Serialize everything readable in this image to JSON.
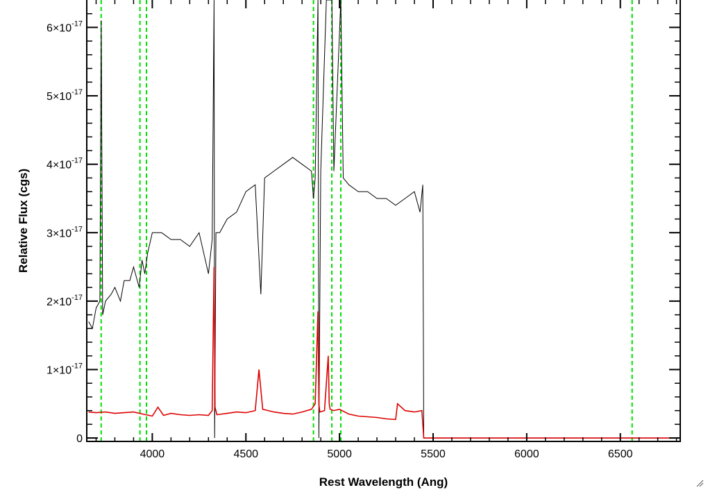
{
  "chart_data": {
    "type": "line",
    "title": "",
    "xlabel": "Rest Wavelength (Ang)",
    "ylabel": "Relative Flux (cgs)",
    "xlim": [
      3650,
      6820
    ],
    "ylim": [
      -0.05,
      6.4
    ],
    "y_unit_exponent": -17,
    "x_ticks": [
      4000,
      4500,
      5000,
      5500,
      6000,
      6500
    ],
    "x_tick_labels": [
      "4000",
      "4500",
      "5000",
      "5500",
      "6000",
      "6500"
    ],
    "y_ticks": [
      0,
      1,
      2,
      3,
      4,
      5,
      6
    ],
    "y_tick_labels": [
      {
        "mantissa": "0",
        "exp": ""
      },
      {
        "mantissa": "1×10",
        "exp": "-17"
      },
      {
        "mantissa": "2×10",
        "exp": "-17"
      },
      {
        "mantissa": "3×10",
        "exp": "-17"
      },
      {
        "mantissa": "4×10",
        "exp": "-17"
      },
      {
        "mantissa": "5×10",
        "exp": "-17"
      },
      {
        "mantissa": "6×10",
        "exp": "-17"
      }
    ],
    "grid": false,
    "legend": "none",
    "reference_lines": {
      "color": "#00e000",
      "style": "dashed",
      "x": [
        3727,
        3934,
        3969,
        4861,
        4959,
        5007,
        6563
      ]
    },
    "series": [
      {
        "color": "#000000",
        "x": [
          3660,
          3680,
          3700,
          3720,
          3727,
          3735,
          3750,
          3780,
          3800,
          3830,
          3850,
          3880,
          3900,
          3930,
          3945,
          3960,
          3975,
          4000,
          4050,
          4100,
          4150,
          4200,
          4250,
          4300,
          4320,
          4330,
          4333,
          4340,
          4360,
          4400,
          4450,
          4500,
          4550,
          4580,
          4600,
          4650,
          4700,
          4750,
          4800,
          4850,
          4861,
          4870,
          4885,
          4890,
          4900,
          4930,
          4959,
          4970,
          5007,
          5020,
          5050,
          5100,
          5150,
          5200,
          5250,
          5300,
          5350,
          5400,
          5430,
          5445,
          5450,
          5455,
          6820
        ],
        "y": [
          1.7,
          1.6,
          1.9,
          2.0,
          6.1,
          1.8,
          2.0,
          2.1,
          2.2,
          2.0,
          2.3,
          2.3,
          2.5,
          2.2,
          2.6,
          2.4,
          2.7,
          3.0,
          3.0,
          2.9,
          2.9,
          2.8,
          3.0,
          2.4,
          2.9,
          6.4,
          0.0,
          3.0,
          3.0,
          3.2,
          3.3,
          3.6,
          3.7,
          2.1,
          3.8,
          3.9,
          4.0,
          4.1,
          4.0,
          3.9,
          3.5,
          3.8,
          6.4,
          0.0,
          3.9,
          6.4,
          6.4,
          3.9,
          6.4,
          3.8,
          3.7,
          3.6,
          3.6,
          3.5,
          3.5,
          3.4,
          3.5,
          3.6,
          3.3,
          3.7,
          0.0,
          0.0,
          0.0
        ]
      },
      {
        "color": "#dd0000",
        "x": [
          3660,
          3700,
          3750,
          3800,
          3850,
          3900,
          3950,
          4000,
          4030,
          4060,
          4100,
          4150,
          4200,
          4250,
          4300,
          4320,
          4330,
          4335,
          4345,
          4400,
          4450,
          4500,
          4550,
          4570,
          4575,
          4590,
          4650,
          4700,
          4750,
          4800,
          4850,
          4870,
          4885,
          4890,
          4895,
          4920,
          4940,
          4945,
          4950,
          4970,
          5000,
          5050,
          5100,
          5150,
          5200,
          5250,
          5300,
          5310,
          5350,
          5400,
          5440,
          5450,
          5455,
          6820
        ],
        "y": [
          0.38,
          0.37,
          0.38,
          0.36,
          0.37,
          0.38,
          0.35,
          0.32,
          0.45,
          0.33,
          0.36,
          0.34,
          0.33,
          0.34,
          0.33,
          0.4,
          2.5,
          0.45,
          0.34,
          0.36,
          0.38,
          0.37,
          0.4,
          1.0,
          0.85,
          0.42,
          0.38,
          0.36,
          0.35,
          0.38,
          0.42,
          0.5,
          1.85,
          0.5,
          0.38,
          0.4,
          1.2,
          0.5,
          0.42,
          0.4,
          0.42,
          0.35,
          0.32,
          0.31,
          0.3,
          0.28,
          0.27,
          0.5,
          0.4,
          0.38,
          0.4,
          0.0,
          0.0,
          0.0
        ]
      }
    ]
  }
}
